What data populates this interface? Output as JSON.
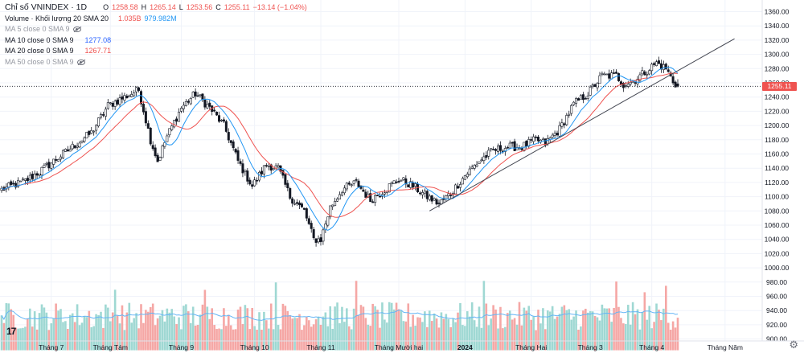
{
  "header": {
    "symbol_title": "Chỉ số VNINDEX · 1D",
    "ohlc": {
      "o_label": "O",
      "o": "1258.58",
      "h_label": "H",
      "h": "1265.14",
      "l_label": "L",
      "l": "1253.56",
      "c_label": "C",
      "c": "1255.11",
      "chg": "−13.14 (−1.04%)"
    }
  },
  "indicators": {
    "volume": {
      "label": "Volume · Khối lượng 20 SMA 20",
      "v1": "1.035B",
      "v2": "979.982M"
    },
    "ma5": {
      "label": "MA 5 close 0 SMA 9"
    },
    "ma10": {
      "label": "MA 10 close 0 SMA 9",
      "value": "1277.08"
    },
    "ma20": {
      "label": "MA 20 close 0 SMA 9",
      "value": "1267.71"
    },
    "ma50": {
      "label": "MA 50 close 0 SMA 9"
    }
  },
  "current_price": "1255.11",
  "footer": {
    "logo": "17"
  },
  "colors": {
    "up": "#26a69a",
    "down": "#ef5350",
    "ma10": "#2196f3",
    "ma20": "#ef5350",
    "trend": "#434651",
    "grid": "#f0f3fa"
  },
  "chart_data": {
    "type": "candlestick",
    "title": "Chỉ số VNINDEX · 1D",
    "y_axis_ticks": [
      1360,
      1340,
      1320,
      1300,
      1280,
      1260,
      1240,
      1220,
      1200,
      1180,
      1160,
      1140,
      1120,
      1100,
      1080,
      1060,
      1040,
      1020,
      1000,
      980,
      960,
      940,
      920,
      900
    ],
    "ylim": [
      890,
      1368
    ],
    "x_tick_labels": [
      "Tháng 7",
      "Tháng Tám",
      "Tháng 9",
      "Tháng 10",
      "Tháng 11",
      "Tháng Mười hai",
      "2024",
      "Tháng Hai",
      "Tháng 3",
      "Tháng 4",
      "Tháng Năm"
    ],
    "close_anchors": [
      [
        0,
        1110
      ],
      [
        10,
        1122
      ],
      [
        18,
        1140
      ],
      [
        28,
        1165
      ],
      [
        38,
        1190
      ],
      [
        45,
        1228
      ],
      [
        52,
        1240
      ],
      [
        58,
        1250
      ],
      [
        63,
        1180
      ],
      [
        66,
        1150
      ],
      [
        70,
        1185
      ],
      [
        76,
        1225
      ],
      [
        82,
        1245
      ],
      [
        88,
        1225
      ],
      [
        94,
        1200
      ],
      [
        100,
        1150
      ],
      [
        106,
        1115
      ],
      [
        112,
        1145
      ],
      [
        117,
        1140
      ],
      [
        122,
        1100
      ],
      [
        128,
        1080
      ],
      [
        132,
        1040
      ],
      [
        135,
        1040
      ],
      [
        139,
        1085
      ],
      [
        144,
        1110
      ],
      [
        150,
        1120
      ],
      [
        156,
        1095
      ],
      [
        162,
        1110
      ],
      [
        168,
        1125
      ],
      [
        174,
        1115
      ],
      [
        180,
        1100
      ],
      [
        185,
        1090
      ],
      [
        190,
        1105
      ],
      [
        196,
        1130
      ],
      [
        202,
        1150
      ],
      [
        208,
        1165
      ],
      [
        214,
        1170
      ],
      [
        220,
        1170
      ],
      [
        226,
        1180
      ],
      [
        230,
        1175
      ],
      [
        236,
        1195
      ],
      [
        242,
        1230
      ],
      [
        248,
        1245
      ],
      [
        254,
        1270
      ],
      [
        260,
        1270
      ],
      [
        263,
        1258
      ],
      [
        267,
        1262
      ],
      [
        272,
        1275
      ],
      [
        277,
        1288
      ],
      [
        281,
        1280
      ],
      [
        284,
        1262
      ],
      [
        286,
        1255
      ]
    ],
    "ma10_last": 1277.08,
    "ma20_last": 1267.71,
    "last_close": 1255.11,
    "trendline": {
      "from_day": 181,
      "from_value": 1080,
      "to_day": 310,
      "to_value": 1322
    },
    "volume": {
      "label": "Volume · Khối lượng 20 SMA 20",
      "last_volume": "1.035B",
      "sma20": "979.982M",
      "axis_note": "shares the price scale area below 1000"
    }
  }
}
